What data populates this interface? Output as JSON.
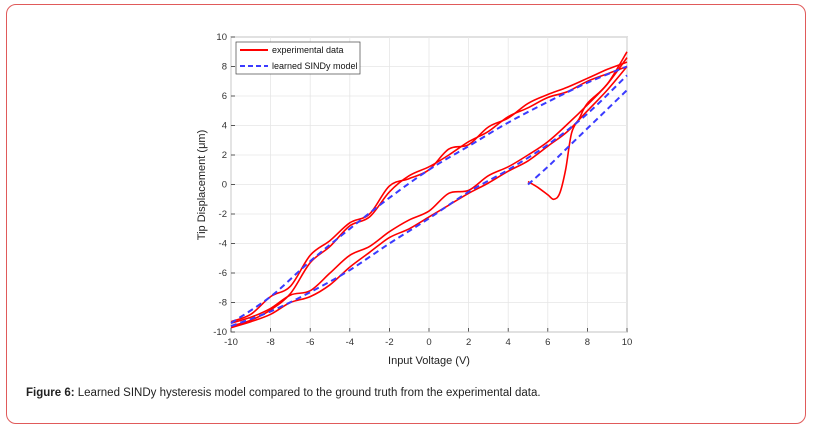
{
  "chart_data": {
    "type": "line",
    "xlabel": "Input Voltage (V)",
    "ylabel": "Tip Displacement (μm)",
    "xlim": [
      -10,
      10
    ],
    "ylim": [
      -10,
      10
    ],
    "xticks": [
      -10,
      -8,
      -6,
      -4,
      -2,
      0,
      2,
      4,
      6,
      8,
      10
    ],
    "yticks": [
      -10,
      -8,
      -6,
      -4,
      -2,
      0,
      2,
      4,
      6,
      8,
      10
    ],
    "xtick_labels": [
      "-10",
      "-8",
      "-6",
      "-4",
      "-2",
      "0",
      "2",
      "4",
      "6",
      "8",
      "10"
    ],
    "ytick_labels": [
      "-10",
      "-8",
      "-6",
      "-4",
      "-2",
      "0",
      "2",
      "4",
      "6",
      "8",
      "10"
    ],
    "grid": true,
    "legend_position": "top-left",
    "series": [
      {
        "name": "experimental data",
        "color": "#ff0000",
        "style": "solid",
        "branches": [
          {
            "x": [
              -10,
              -9,
              -8,
              -7,
              -6,
              -5,
              -4,
              -3,
              -2,
              -1,
              0,
              1,
              2,
              3,
              4,
              5,
              6,
              7,
              8,
              9,
              10
            ],
            "y": [
              -9.6,
              -9.2,
              -8.5,
              -7.4,
              -5.3,
              -4.2,
              -2.8,
              -2.2,
              -0.5,
              0.6,
              1.2,
              2.0,
              2.9,
              3.6,
              4.6,
              5.2,
              5.9,
              6.3,
              7.0,
              7.5,
              8.0
            ]
          },
          {
            "x": [
              -10,
              -9,
              -8,
              -7,
              -6,
              -5,
              -4,
              -3,
              -2,
              -1,
              0,
              1,
              2,
              3,
              4,
              5,
              6,
              7,
              8,
              9,
              10
            ],
            "y": [
              -9.3,
              -8.8,
              -7.6,
              -6.9,
              -4.8,
              -3.8,
              -2.6,
              -2.0,
              -0.1,
              0.4,
              1.0,
              2.4,
              2.7,
              3.9,
              4.5,
              5.5,
              6.1,
              6.6,
              7.2,
              7.8,
              8.3
            ]
          },
          {
            "x": [
              -10,
              -9,
              -8,
              -7,
              -6,
              -5,
              -4,
              -3,
              -2,
              -1,
              0,
              1,
              2,
              3,
              4,
              5,
              6,
              7,
              8,
              9,
              10
            ],
            "y": [
              -9.7,
              -9.3,
              -8.8,
              -8.0,
              -7.6,
              -6.8,
              -5.6,
              -4.6,
              -3.6,
              -3.0,
              -2.2,
              -1.4,
              -0.6,
              0.1,
              0.9,
              1.6,
              2.6,
              3.6,
              5.0,
              6.4,
              8.0
            ]
          },
          {
            "x": [
              -10,
              -9,
              -8,
              -7,
              -6,
              -5,
              -4,
              -3,
              -2,
              -1,
              0,
              1,
              2,
              3,
              4,
              5,
              6,
              7,
              8,
              9,
              10
            ],
            "y": [
              -9.4,
              -9.0,
              -8.4,
              -7.5,
              -7.2,
              -6.0,
              -4.8,
              -4.2,
              -3.2,
              -2.4,
              -1.8,
              -0.6,
              -0.4,
              0.6,
              1.2,
              2.0,
              2.9,
              4.1,
              5.4,
              6.8,
              8.6
            ]
          },
          {
            "x": [
              5,
              5.5,
              6,
              6.3,
              6.6,
              6.9,
              7.2,
              7.6,
              8,
              9,
              10
            ],
            "y": [
              0.2,
              -0.2,
              -0.7,
              -1.0,
              -0.6,
              1.0,
              3.5,
              4.5,
              5.5,
              6.8,
              9.0
            ]
          }
        ]
      },
      {
        "name": "learned SINDy model",
        "color": "#3b3bff",
        "style": "dashed",
        "branches": [
          {
            "x": [
              -10,
              -8,
              -6,
              -4,
              -2,
              0,
              2,
              4,
              6,
              8,
              10
            ],
            "y": [
              -9.4,
              -7.6,
              -5.2,
              -3.0,
              -0.9,
              1.0,
              2.6,
              4.2,
              5.6,
              6.9,
              8.0
            ]
          },
          {
            "x": [
              -10,
              -8,
              -6,
              -4,
              -2,
              0,
              2,
              4,
              6,
              8,
              10
            ],
            "y": [
              -9.6,
              -8.6,
              -7.3,
              -5.8,
              -4.0,
              -2.3,
              -0.5,
              1.0,
              2.7,
              4.8,
              7.4
            ]
          },
          {
            "x": [
              5,
              6,
              7,
              8,
              9,
              10
            ],
            "y": [
              0.0,
              1.2,
              2.5,
              3.8,
              5.1,
              6.4
            ]
          }
        ]
      }
    ]
  },
  "caption": {
    "label": "Figure 6:",
    "text": " Learned SINDy hysteresis model compared to the ground truth from the experimental data."
  }
}
